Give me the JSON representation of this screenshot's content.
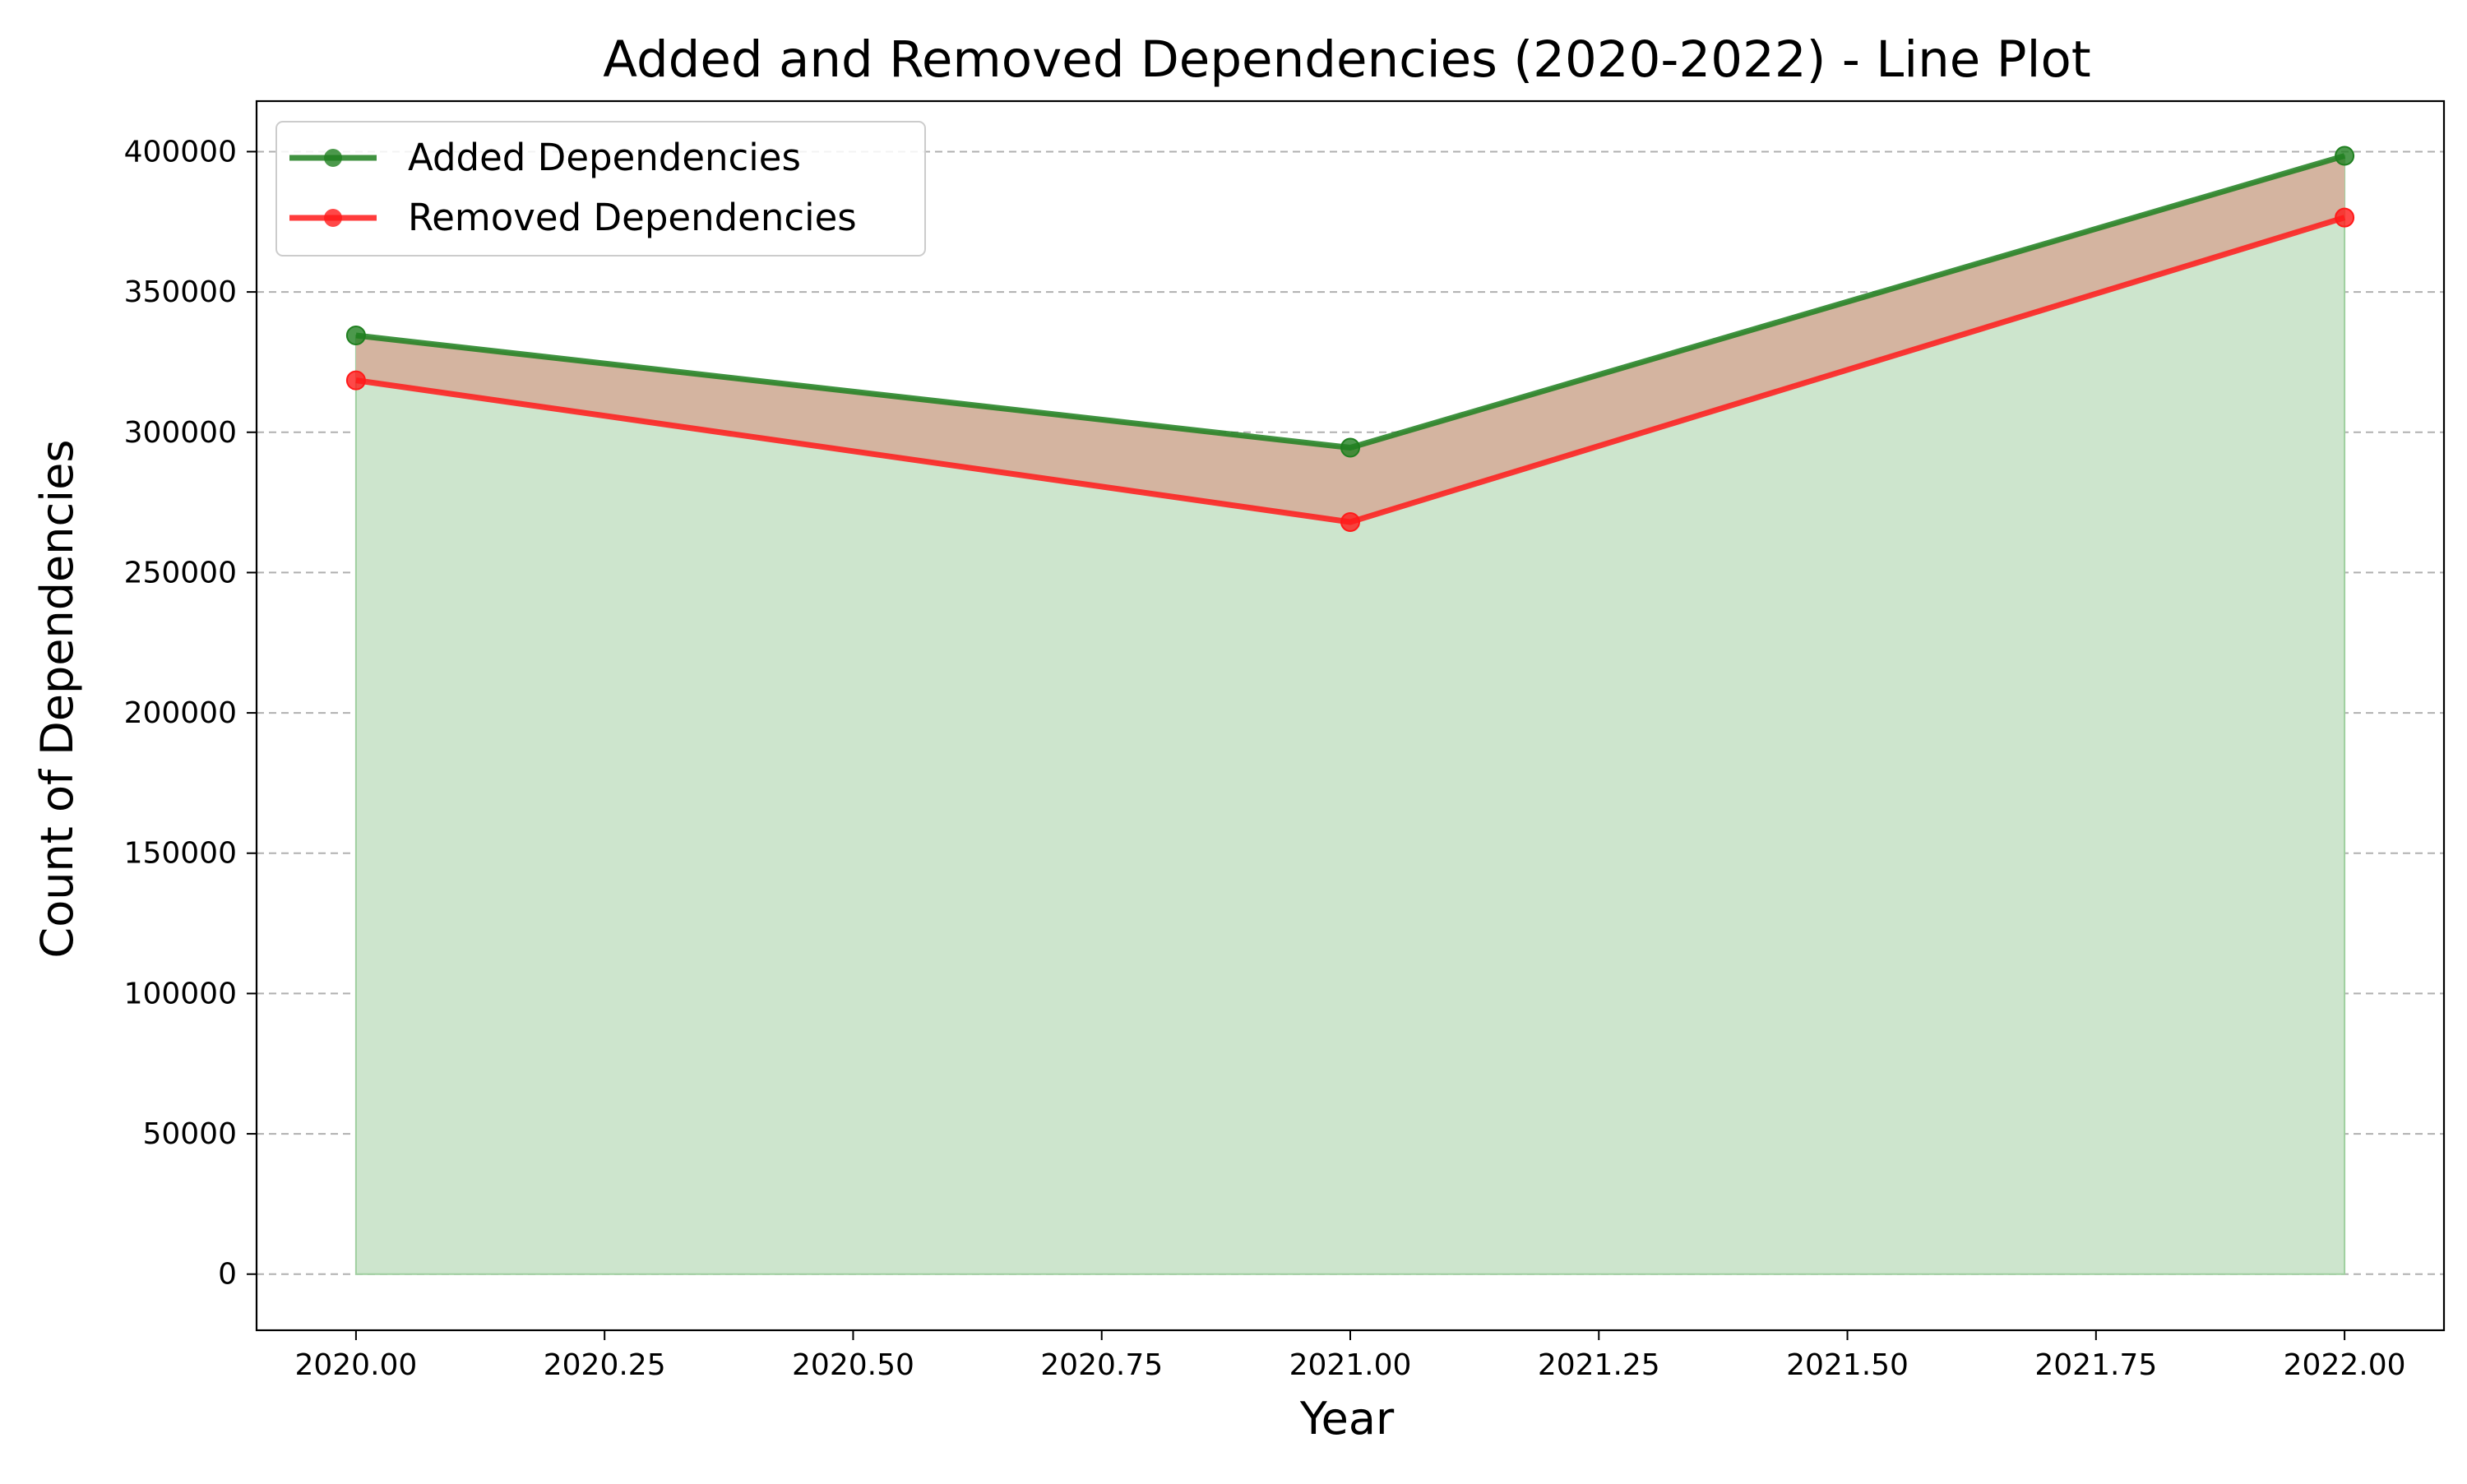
{
  "chart_data": {
    "type": "area",
    "title": "Added and Removed Dependencies (2020-2022) - Line Plot",
    "xlabel": "Year",
    "ylabel": "Count of Dependencies",
    "x": [
      2020,
      2021,
      2022
    ],
    "xlim": [
      1999.9,
      2022.1
    ],
    "ylim": [
      -20000,
      418000
    ],
    "x_ticks": [
      2020.0,
      2020.25,
      2020.5,
      2020.75,
      2021.0,
      2021.25,
      2021.5,
      2021.75,
      2022.0
    ],
    "x_tick_labels": [
      "2020.00",
      "2020.25",
      "2020.50",
      "2020.75",
      "2021.00",
      "2021.25",
      "2021.50",
      "2021.75",
      "2022.00"
    ],
    "y_ticks": [
      0,
      50000,
      100000,
      150000,
      200000,
      250000,
      300000,
      350000,
      400000
    ],
    "y_tick_labels": [
      "0",
      "50000",
      "100000",
      "150000",
      "200000",
      "250000",
      "300000",
      "350000",
      "400000"
    ],
    "grid": {
      "y": true,
      "x": false,
      "style": "dashed"
    },
    "legend_position": "top-left",
    "series": [
      {
        "name": "Added Dependencies",
        "values": [
          334500,
          294500,
          398500
        ],
        "color": "#1f7f1f",
        "fill": "#cde5cd",
        "marker": "circle"
      },
      {
        "name": "Removed Dependencies",
        "values": [
          318500,
          268000,
          376500
        ],
        "color": "#ff1a1a",
        "fill": "#d4b4a0",
        "marker": "circle"
      }
    ]
  }
}
